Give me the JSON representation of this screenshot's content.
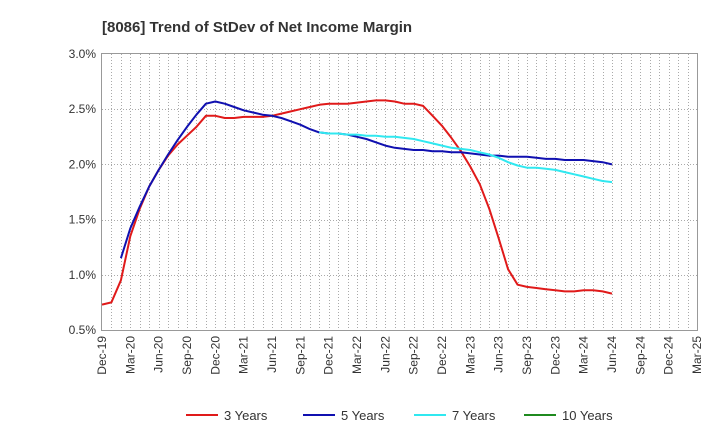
{
  "chart_data": {
    "type": "line",
    "title": "[8086]  Trend of StDev of Net Income Margin",
    "xlabel": "",
    "ylabel": "",
    "ylim": [
      0.5,
      3.0
    ],
    "yticks": [
      "0.5%",
      "1.0%",
      "1.5%",
      "2.0%",
      "2.5%",
      "3.0%"
    ],
    "ytick_values": [
      0.5,
      1.0,
      1.5,
      2.0,
      2.5,
      3.0
    ],
    "xticks": [
      "Dec-19",
      "Mar-20",
      "Jun-20",
      "Sep-20",
      "Dec-20",
      "Mar-21",
      "Jun-21",
      "Sep-21",
      "Dec-21",
      "Mar-22",
      "Jun-22",
      "Sep-22",
      "Dec-22",
      "Mar-23",
      "Jun-23",
      "Sep-23",
      "Dec-23",
      "Mar-24",
      "Jun-24",
      "Sep-24",
      "Dec-24",
      "Mar-25"
    ],
    "grid": true,
    "legend_position": "bottom",
    "series": [
      {
        "name": "3 Years",
        "color": "#e01a1a",
        "points": [
          [
            0,
            0.73
          ],
          [
            1,
            0.75
          ],
          [
            2,
            0.95
          ],
          [
            3,
            1.35
          ],
          [
            4,
            1.6
          ],
          [
            5,
            1.8
          ],
          [
            6,
            1.95
          ],
          [
            7,
            2.08
          ],
          [
            8,
            2.18
          ],
          [
            9,
            2.26
          ],
          [
            10,
            2.34
          ],
          [
            11,
            2.44
          ],
          [
            12,
            2.44
          ],
          [
            13,
            2.42
          ],
          [
            14,
            2.42
          ],
          [
            15,
            2.43
          ],
          [
            16,
            2.43
          ],
          [
            17,
            2.43
          ],
          [
            18,
            2.44
          ],
          [
            19,
            2.46
          ],
          [
            20,
            2.48
          ],
          [
            21,
            2.5
          ],
          [
            22,
            2.52
          ],
          [
            23,
            2.54
          ],
          [
            24,
            2.55
          ],
          [
            25,
            2.55
          ],
          [
            26,
            2.55
          ],
          [
            27,
            2.56
          ],
          [
            28,
            2.57
          ],
          [
            29,
            2.58
          ],
          [
            30,
            2.58
          ],
          [
            31,
            2.57
          ],
          [
            32,
            2.55
          ],
          [
            33,
            2.55
          ],
          [
            34,
            2.53
          ],
          [
            35,
            2.44
          ],
          [
            36,
            2.35
          ],
          [
            37,
            2.24
          ],
          [
            38,
            2.12
          ],
          [
            39,
            1.98
          ],
          [
            40,
            1.82
          ],
          [
            41,
            1.6
          ],
          [
            42,
            1.33
          ],
          [
            43,
            1.05
          ],
          [
            44,
            0.91
          ],
          [
            45,
            0.89
          ],
          [
            46,
            0.88
          ],
          [
            47,
            0.87
          ],
          [
            48,
            0.86
          ],
          [
            49,
            0.85
          ],
          [
            50,
            0.85
          ],
          [
            51,
            0.86
          ],
          [
            52,
            0.86
          ],
          [
            53,
            0.85
          ],
          [
            54,
            0.83
          ]
        ]
      },
      {
        "name": "5 Years",
        "color": "#1010b0",
        "points": [
          [
            2,
            1.15
          ],
          [
            3,
            1.42
          ],
          [
            4,
            1.62
          ],
          [
            5,
            1.8
          ],
          [
            6,
            1.95
          ],
          [
            7,
            2.09
          ],
          [
            8,
            2.22
          ],
          [
            9,
            2.34
          ],
          [
            10,
            2.45
          ],
          [
            11,
            2.55
          ],
          [
            12,
            2.57
          ],
          [
            13,
            2.55
          ],
          [
            14,
            2.52
          ],
          [
            15,
            2.49
          ],
          [
            16,
            2.47
          ],
          [
            17,
            2.45
          ],
          [
            18,
            2.44
          ],
          [
            19,
            2.42
          ],
          [
            20,
            2.39
          ],
          [
            21,
            2.36
          ],
          [
            22,
            2.32
          ],
          [
            23,
            2.29
          ],
          [
            24,
            2.28
          ],
          [
            25,
            2.28
          ],
          [
            26,
            2.27
          ],
          [
            27,
            2.25
          ],
          [
            28,
            2.23
          ],
          [
            29,
            2.2
          ],
          [
            30,
            2.17
          ],
          [
            31,
            2.15
          ],
          [
            32,
            2.14
          ],
          [
            33,
            2.13
          ],
          [
            34,
            2.13
          ],
          [
            35,
            2.12
          ],
          [
            36,
            2.12
          ],
          [
            37,
            2.11
          ],
          [
            38,
            2.11
          ],
          [
            39,
            2.1
          ],
          [
            40,
            2.09
          ],
          [
            41,
            2.08
          ],
          [
            42,
            2.08
          ],
          [
            43,
            2.07
          ],
          [
            44,
            2.07
          ],
          [
            45,
            2.07
          ],
          [
            46,
            2.06
          ],
          [
            47,
            2.05
          ],
          [
            48,
            2.05
          ],
          [
            49,
            2.04
          ],
          [
            50,
            2.04
          ],
          [
            51,
            2.04
          ],
          [
            52,
            2.03
          ],
          [
            53,
            2.02
          ],
          [
            54,
            2.0
          ]
        ]
      },
      {
        "name": "7 Years",
        "color": "#30e8f0",
        "points": [
          [
            23,
            2.29
          ],
          [
            24,
            2.28
          ],
          [
            25,
            2.28
          ],
          [
            26,
            2.27
          ],
          [
            27,
            2.27
          ],
          [
            28,
            2.26
          ],
          [
            29,
            2.26
          ],
          [
            30,
            2.25
          ],
          [
            31,
            2.25
          ],
          [
            32,
            2.24
          ],
          [
            33,
            2.23
          ],
          [
            34,
            2.21
          ],
          [
            35,
            2.19
          ],
          [
            36,
            2.17
          ],
          [
            37,
            2.15
          ],
          [
            38,
            2.14
          ],
          [
            39,
            2.13
          ],
          [
            40,
            2.11
          ],
          [
            41,
            2.09
          ],
          [
            42,
            2.06
          ],
          [
            43,
            2.02
          ],
          [
            44,
            1.99
          ],
          [
            45,
            1.97
          ],
          [
            46,
            1.97
          ],
          [
            47,
            1.96
          ],
          [
            48,
            1.95
          ],
          [
            49,
            1.93
          ],
          [
            50,
            1.91
          ],
          [
            51,
            1.89
          ],
          [
            52,
            1.87
          ],
          [
            53,
            1.85
          ],
          [
            54,
            1.84
          ]
        ]
      },
      {
        "name": "10 Years",
        "color": "#1f8a1f",
        "points": []
      }
    ]
  }
}
